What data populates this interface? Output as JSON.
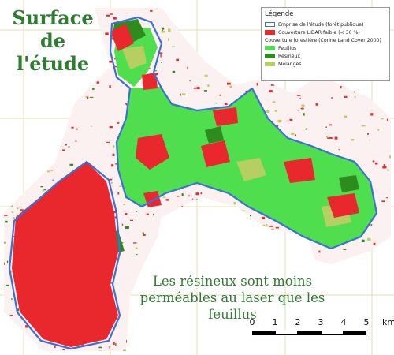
{
  "title": {
    "line1": "Surface",
    "line2": "de l'étude"
  },
  "caption": {
    "line1": "Les résineux sont moins",
    "line2": "perméables au laser que les feuillus"
  },
  "legend": {
    "heading": "Légende",
    "items": [
      {
        "label": "Emprise de l'étude (forêt publique)",
        "color": "#3c6fd8",
        "style": "outline"
      },
      {
        "label": "Couverture LIDAR faible (< 30 %)",
        "color": "#e8282c",
        "style": "fill"
      }
    ],
    "subheading": "Couverture forestière (Corine Land Cover 2000)",
    "forest_items": [
      {
        "label": "Feuillus",
        "color": "#4ede4e"
      },
      {
        "label": "Résineux",
        "color": "#2e8b1e"
      },
      {
        "label": "Mélanges",
        "color": "#b5cf62"
      }
    ]
  },
  "scale": {
    "ticks": [
      "0",
      "1",
      "2",
      "3",
      "4",
      "5"
    ],
    "unit": "km"
  },
  "colors": {
    "feuillus": "#4ede4e",
    "resineux": "#2e8b1e",
    "melanges": "#b5cf62",
    "lidar_faible": "#e8282c",
    "emprise": "#3c6fd8",
    "grid": "#e6dcb0"
  }
}
